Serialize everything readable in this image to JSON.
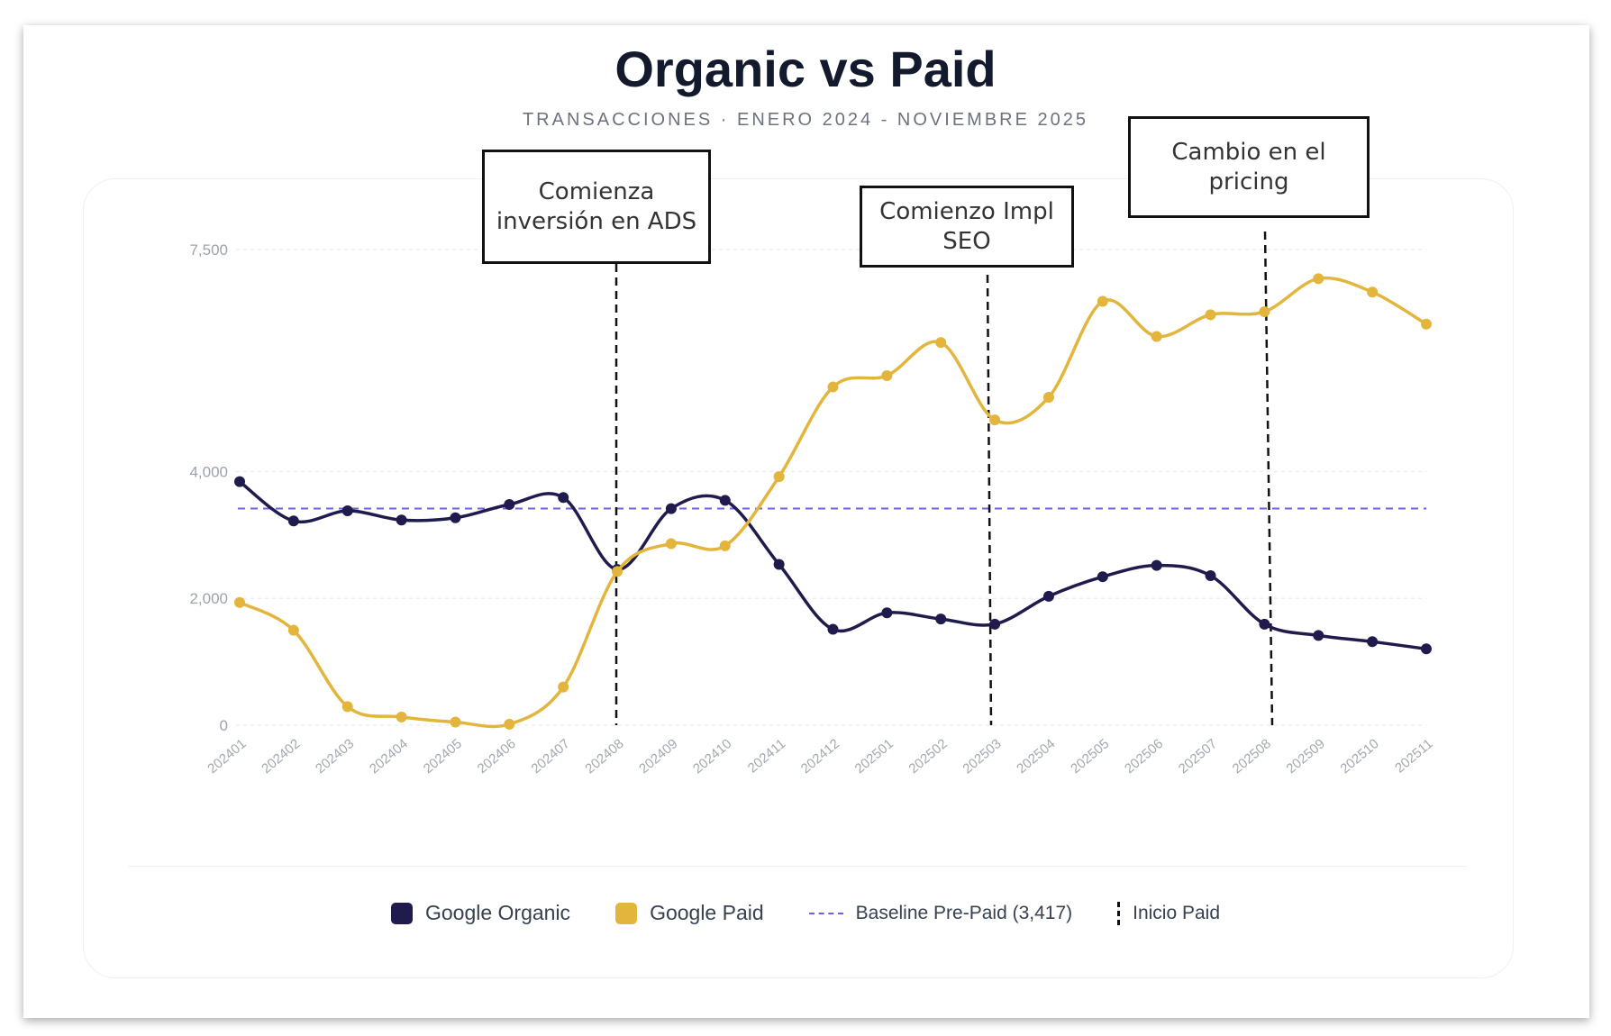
{
  "title": "Organic vs Paid",
  "subtitle": "TRANSACCIONES · ENERO 2024 - NOVIEMBRE 2025",
  "chart_data": {
    "type": "line",
    "title": "Organic vs Paid",
    "subtitle": "TRANSACCIONES · ENERO 2024 - NOVIEMBRE 2025",
    "categories": [
      "202401",
      "202402",
      "202403",
      "202404",
      "202405",
      "202406",
      "202407",
      "202408",
      "202409",
      "202410",
      "202411",
      "202412",
      "202501",
      "202502",
      "202503",
      "202504",
      "202505",
      "202506",
      "202507",
      "202508",
      "202509",
      "202510",
      "202511"
    ],
    "yticks": [
      0,
      2000,
      4000,
      7500
    ],
    "ytick_labels": [
      "0",
      "2,000",
      "4,000",
      "7,500"
    ],
    "ylim": [
      0,
      7500
    ],
    "grid": true,
    "series": [
      {
        "name": "Google Organic",
        "color": "#1f1b4d",
        "values": [
          3840,
          3220,
          3380,
          3235,
          3270,
          3480,
          3590,
          2455,
          3415,
          3545,
          2535,
          1512,
          1772,
          1675,
          1593,
          2033,
          2341,
          2520,
          2358,
          1593,
          1415,
          1317,
          1203
        ]
      },
      {
        "name": "Google Paid",
        "color": "#e3b53c",
        "values": [
          1935,
          1496,
          293,
          130,
          49,
          16,
          602,
          2423,
          2862,
          2829,
          3919,
          5333,
          5512,
          6033,
          4813,
          5171,
          6683,
          6130,
          6472,
          6520,
          7041,
          6829,
          6325
        ]
      }
    ],
    "baseline": {
      "name": "Baseline Pre-Paid (3,417)",
      "value": 3417,
      "color": "#6b63e0"
    },
    "markers": {
      "name": "Inicio Paid",
      "color": "#111111"
    },
    "annotations": [
      {
        "text": "Comienza inversión en ADS",
        "x": "202408"
      },
      {
        "text": "Comienzo Impl SEO",
        "x": "202503"
      },
      {
        "text": "Cambio en el pricing",
        "x": "202508"
      }
    ],
    "legend": "bottom"
  },
  "legend": {
    "organic": "Google Organic",
    "paid": "Google Paid",
    "baseline": "Baseline Pre-Paid (3,417)",
    "inicio": "Inicio Paid"
  }
}
